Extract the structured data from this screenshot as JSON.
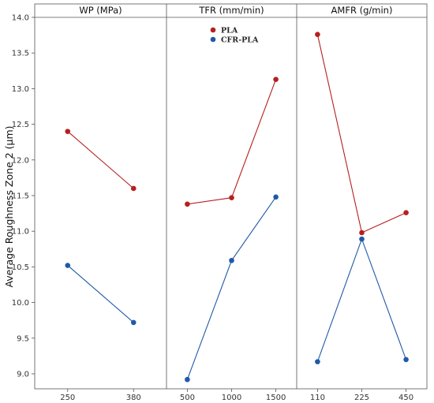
{
  "chart_data": {
    "type": "line",
    "ylabel": "Average Roughness Zone 2 (µm)",
    "ylim": [
      8.85,
      14.1
    ],
    "yticks": [
      "9.0",
      "9.5",
      "10.0",
      "10.5",
      "11.0",
      "11.5",
      "12.0",
      "12.5",
      "13.0",
      "13.5",
      "14.0"
    ],
    "legend": {
      "placement": "top-center of middle panel",
      "entries": [
        {
          "name": "PLA",
          "color": "#b5201f"
        },
        {
          "name": "CFR-PLA",
          "color": "#1f5aa6"
        }
      ]
    },
    "panels": [
      {
        "title": "WP (MPa)",
        "categories": [
          "250",
          "380"
        ],
        "series": [
          {
            "name": "PLA",
            "color": "#b5201f",
            "values": [
              12.4,
              11.6
            ]
          },
          {
            "name": "CFR-PLA",
            "color": "#1f5aa6",
            "values": [
              10.52,
              9.72
            ]
          }
        ]
      },
      {
        "title": "TFR (mm/min)",
        "categories": [
          "500",
          "1000",
          "1500"
        ],
        "series": [
          {
            "name": "PLA",
            "color": "#b5201f",
            "values": [
              11.38,
              11.47,
              13.13
            ]
          },
          {
            "name": "CFR-PLA",
            "color": "#1f5aa6",
            "values": [
              8.92,
              10.59,
              11.48
            ]
          }
        ]
      },
      {
        "title": "AMFR (g/min)",
        "categories": [
          "110",
          "225",
          "450"
        ],
        "series": [
          {
            "name": "PLA",
            "color": "#b5201f",
            "values": [
              13.76,
              10.98,
              11.26
            ]
          },
          {
            "name": "CFR-PLA",
            "color": "#1f5aa6",
            "values": [
              9.17,
              10.89,
              9.2
            ]
          }
        ]
      }
    ]
  }
}
